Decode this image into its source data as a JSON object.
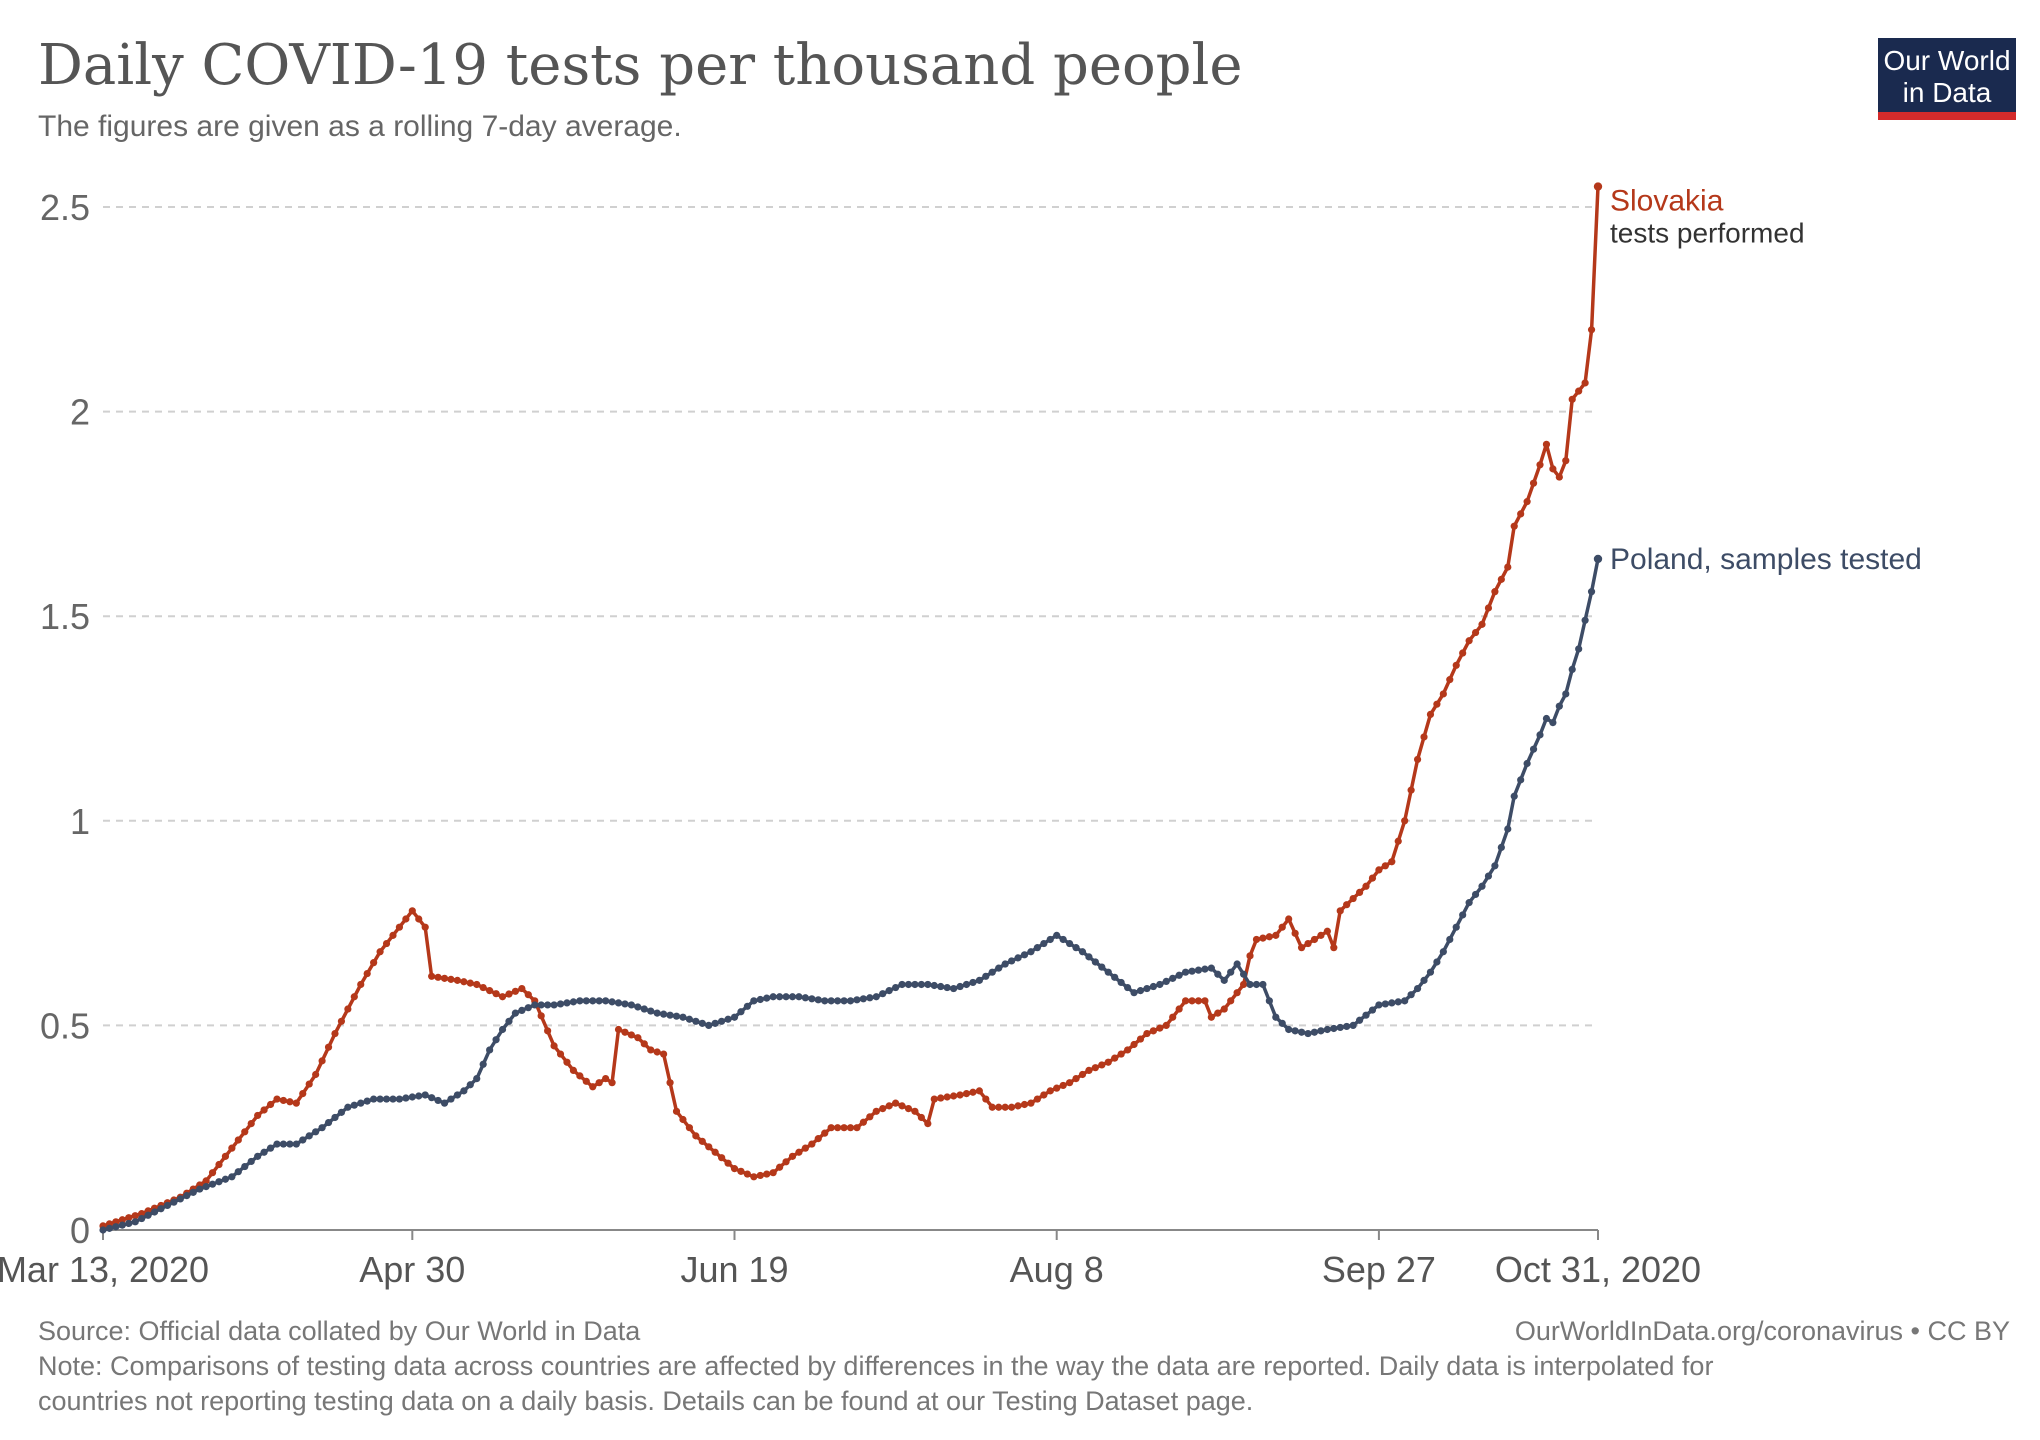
{
  "header": {
    "title": "Daily COVID-19 tests per thousand people",
    "subtitle": "The figures are given as a rolling 7-day average."
  },
  "logo": {
    "line1": "Our World",
    "line2": "in Data",
    "bg_color": "#1a2a4f",
    "accent_color": "#d42b2b"
  },
  "footer": {
    "source": "Source: Official data collated by Our World in Data",
    "url": "OurWorldInData.org/coronavirus • CC BY",
    "note_line1": "Note: Comparisons of testing data across countries are affected by differences in the way the data are reported. Daily data is interpolated for",
    "note_line2": "countries not reporting testing data on a daily basis. Details can be found at our Testing Dataset page."
  },
  "chart_data": {
    "type": "line",
    "title": "Daily COVID-19 tests per thousand people",
    "xlabel": "",
    "ylabel": "",
    "ylim": [
      0,
      2.6
    ],
    "xlim": [
      0,
      232
    ],
    "grid": true,
    "y_ticks": [
      {
        "value": 0,
        "label": "0"
      },
      {
        "value": 0.5,
        "label": "0.5"
      },
      {
        "value": 1,
        "label": "1"
      },
      {
        "value": 1.5,
        "label": "1.5"
      },
      {
        "value": 2,
        "label": "2"
      },
      {
        "value": 2.5,
        "label": "2.5"
      }
    ],
    "x_ticks": [
      {
        "day": 0,
        "label": "Mar 13, 2020"
      },
      {
        "day": 48,
        "label": "Apr 30"
      },
      {
        "day": 98,
        "label": "Jun 19"
      },
      {
        "day": 148,
        "label": "Aug 8"
      },
      {
        "day": 198,
        "label": "Sep 27"
      },
      {
        "day": 232,
        "label": "Oct 31, 2020"
      }
    ],
    "series": [
      {
        "name": "Slovakia",
        "sublabel": "tests performed",
        "color": "#b5381a",
        "points": [
          [
            0,
            0.01
          ],
          [
            6,
            0.04
          ],
          [
            12,
            0.08
          ],
          [
            16,
            0.12
          ],
          [
            20,
            0.2
          ],
          [
            24,
            0.28
          ],
          [
            27,
            0.32
          ],
          [
            30,
            0.31
          ],
          [
            33,
            0.38
          ],
          [
            36,
            0.48
          ],
          [
            40,
            0.6
          ],
          [
            43,
            0.68
          ],
          [
            46,
            0.74
          ],
          [
            48,
            0.78
          ],
          [
            50,
            0.74
          ],
          [
            51,
            0.62
          ],
          [
            55,
            0.61
          ],
          [
            58,
            0.6
          ],
          [
            62,
            0.57
          ],
          [
            65,
            0.59
          ],
          [
            67,
            0.56
          ],
          [
            70,
            0.45
          ],
          [
            73,
            0.39
          ],
          [
            76,
            0.35
          ],
          [
            78,
            0.37
          ],
          [
            79,
            0.36
          ],
          [
            80,
            0.49
          ],
          [
            83,
            0.47
          ],
          [
            85,
            0.44
          ],
          [
            87,
            0.43
          ],
          [
            89,
            0.29
          ],
          [
            92,
            0.23
          ],
          [
            95,
            0.19
          ],
          [
            98,
            0.15
          ],
          [
            101,
            0.13
          ],
          [
            104,
            0.14
          ],
          [
            107,
            0.18
          ],
          [
            110,
            0.21
          ],
          [
            113,
            0.25
          ],
          [
            117,
            0.25
          ],
          [
            120,
            0.29
          ],
          [
            123,
            0.31
          ],
          [
            126,
            0.29
          ],
          [
            128,
            0.26
          ],
          [
            129,
            0.32
          ],
          [
            133,
            0.33
          ],
          [
            136,
            0.34
          ],
          [
            138,
            0.3
          ],
          [
            141,
            0.3
          ],
          [
            144,
            0.31
          ],
          [
            147,
            0.34
          ],
          [
            150,
            0.36
          ],
          [
            153,
            0.39
          ],
          [
            156,
            0.41
          ],
          [
            159,
            0.44
          ],
          [
            162,
            0.48
          ],
          [
            165,
            0.5
          ],
          [
            168,
            0.56
          ],
          [
            171,
            0.56
          ],
          [
            172,
            0.52
          ],
          [
            174,
            0.54
          ],
          [
            177,
            0.6
          ],
          [
            178,
            0.67
          ],
          [
            179,
            0.71
          ],
          [
            182,
            0.72
          ],
          [
            184,
            0.76
          ],
          [
            186,
            0.69
          ],
          [
            188,
            0.71
          ],
          [
            190,
            0.73
          ],
          [
            191,
            0.69
          ],
          [
            192,
            0.78
          ],
          [
            194,
            0.81
          ],
          [
            196,
            0.84
          ],
          [
            198,
            0.88
          ],
          [
            200,
            0.9
          ],
          [
            202,
            1.0
          ],
          [
            204,
            1.15
          ],
          [
            206,
            1.26
          ],
          [
            208,
            1.31
          ],
          [
            210,
            1.38
          ],
          [
            212,
            1.44
          ],
          [
            214,
            1.48
          ],
          [
            216,
            1.56
          ],
          [
            218,
            1.62
          ],
          [
            219,
            1.72
          ],
          [
            221,
            1.78
          ],
          [
            223,
            1.87
          ],
          [
            224,
            1.92
          ],
          [
            225,
            1.86
          ],
          [
            226,
            1.84
          ],
          [
            227,
            1.88
          ],
          [
            228,
            2.03
          ],
          [
            229,
            2.05
          ],
          [
            230,
            2.07
          ],
          [
            231,
            2.2
          ],
          [
            232,
            2.55
          ]
        ]
      },
      {
        "name": "Poland, samples tested",
        "sublabel": "",
        "color": "#3d4c66",
        "points": [
          [
            0,
            0.0
          ],
          [
            5,
            0.02
          ],
          [
            10,
            0.06
          ],
          [
            15,
            0.1
          ],
          [
            20,
            0.13
          ],
          [
            24,
            0.18
          ],
          [
            27,
            0.21
          ],
          [
            30,
            0.21
          ],
          [
            34,
            0.25
          ],
          [
            38,
            0.3
          ],
          [
            42,
            0.32
          ],
          [
            46,
            0.32
          ],
          [
            50,
            0.33
          ],
          [
            53,
            0.31
          ],
          [
            56,
            0.34
          ],
          [
            58,
            0.37
          ],
          [
            60,
            0.44
          ],
          [
            62,
            0.49
          ],
          [
            64,
            0.53
          ],
          [
            67,
            0.55
          ],
          [
            70,
            0.55
          ],
          [
            74,
            0.56
          ],
          [
            78,
            0.56
          ],
          [
            82,
            0.55
          ],
          [
            86,
            0.53
          ],
          [
            90,
            0.52
          ],
          [
            94,
            0.5
          ],
          [
            98,
            0.52
          ],
          [
            101,
            0.56
          ],
          [
            104,
            0.57
          ],
          [
            108,
            0.57
          ],
          [
            112,
            0.56
          ],
          [
            116,
            0.56
          ],
          [
            120,
            0.57
          ],
          [
            124,
            0.6
          ],
          [
            128,
            0.6
          ],
          [
            132,
            0.59
          ],
          [
            136,
            0.61
          ],
          [
            140,
            0.65
          ],
          [
            144,
            0.68
          ],
          [
            148,
            0.72
          ],
          [
            152,
            0.68
          ],
          [
            156,
            0.63
          ],
          [
            160,
            0.58
          ],
          [
            164,
            0.6
          ],
          [
            168,
            0.63
          ],
          [
            172,
            0.64
          ],
          [
            174,
            0.61
          ],
          [
            176,
            0.65
          ],
          [
            178,
            0.6
          ],
          [
            180,
            0.6
          ],
          [
            182,
            0.52
          ],
          [
            184,
            0.49
          ],
          [
            187,
            0.48
          ],
          [
            190,
            0.49
          ],
          [
            194,
            0.5
          ],
          [
            198,
            0.55
          ],
          [
            202,
            0.56
          ],
          [
            204,
            0.59
          ],
          [
            206,
            0.63
          ],
          [
            208,
            0.68
          ],
          [
            210,
            0.74
          ],
          [
            212,
            0.8
          ],
          [
            214,
            0.84
          ],
          [
            216,
            0.89
          ],
          [
            218,
            0.98
          ],
          [
            219,
            1.06
          ],
          [
            221,
            1.14
          ],
          [
            223,
            1.21
          ],
          [
            224,
            1.25
          ],
          [
            225,
            1.24
          ],
          [
            226,
            1.28
          ],
          [
            227,
            1.31
          ],
          [
            228,
            1.37
          ],
          [
            229,
            1.42
          ],
          [
            230,
            1.49
          ],
          [
            231,
            1.56
          ],
          [
            232,
            1.64
          ]
        ]
      }
    ]
  }
}
